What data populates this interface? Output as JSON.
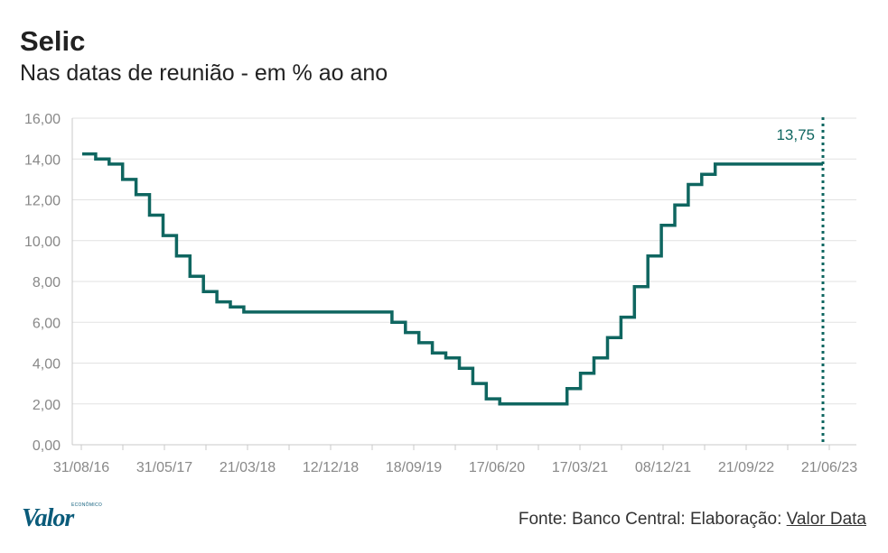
{
  "header": {
    "title": "Selic",
    "subtitle": "Nas datas de reunião - em % ao ano"
  },
  "footer": {
    "logo_text": "Valor",
    "logo_small_text": "ECONÔMICO",
    "source_prefix": "Fonte: Banco Central: Elaboração:",
    "source_link": "Valor Data"
  },
  "colors": {
    "line": "#0f6660",
    "grid": "#e2e2e2",
    "tick_text": "#888888",
    "logo": "#0a5b7a"
  },
  "chart_data": {
    "type": "line",
    "step": true,
    "title": "Selic",
    "subtitle": "Nas datas de reunião - em % ao ano",
    "xlabel": "",
    "ylabel": "",
    "ylim": [
      0,
      16
    ],
    "grid": true,
    "y_ticks": [
      "0,00",
      "2,00",
      "4,00",
      "6,00",
      "8,00",
      "10,00",
      "12,00",
      "14,00",
      "16,00"
    ],
    "x_ticks": [
      "31/08/16",
      "31/05/17",
      "21/03/18",
      "12/12/18",
      "18/09/19",
      "17/06/20",
      "17/03/21",
      "08/12/21",
      "21/09/22",
      "21/06/23"
    ],
    "series": [
      {
        "values": [
          14.25,
          14.0,
          13.75,
          13.0,
          12.25,
          11.25,
          10.25,
          9.25,
          8.25,
          7.5,
          7.0,
          6.75,
          6.5,
          6.5,
          6.5,
          6.5,
          6.5,
          6.5,
          6.5,
          6.5,
          6.5,
          6.5,
          6.5,
          6.0,
          5.5,
          5.0,
          4.5,
          4.25,
          3.75,
          3.0,
          2.25,
          2.0,
          2.0,
          2.0,
          2.0,
          2.0,
          2.75,
          3.5,
          4.25,
          5.25,
          6.25,
          7.75,
          9.25,
          10.75,
          11.75,
          12.75,
          13.25,
          13.75,
          13.75,
          13.75,
          13.75,
          13.75,
          13.75,
          13.75,
          13.75
        ]
      }
    ],
    "annotations": [
      {
        "text": "13,75",
        "at": "last"
      }
    ]
  }
}
